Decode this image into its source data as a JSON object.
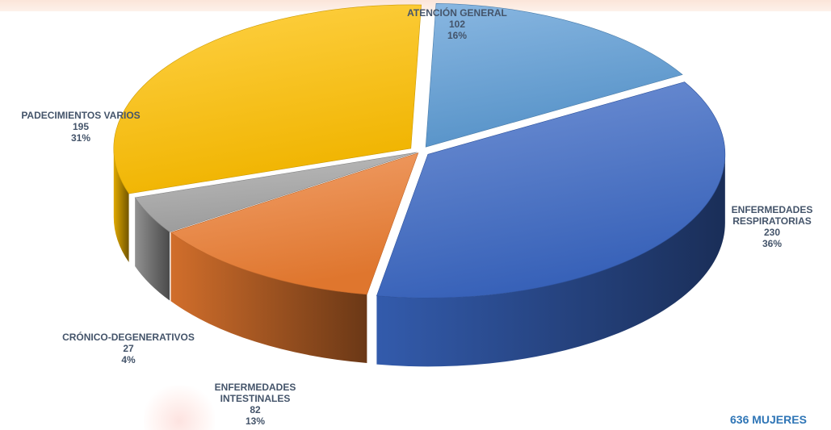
{
  "chart_data": {
    "type": "pie",
    "style": "3d-exploded",
    "total_label": "636 MUJERES",
    "slices": [
      {
        "name_lines": [
          "ATENCIÓN GENERAL"
        ],
        "value": 102,
        "value_label": "102",
        "percent": 16,
        "percent_label": "16%",
        "color": "#5b9bd5"
      },
      {
        "name_lines": [
          "ENFERMEDADES",
          "RESPIRATORIAS"
        ],
        "value": 230,
        "value_label": "230",
        "percent": 36,
        "percent_label": "36%",
        "color": "#3a67c4"
      },
      {
        "name_lines": [
          "ENFERMEDADES",
          "INTESTINALES"
        ],
        "value": 82,
        "value_label": "82",
        "percent": 13,
        "percent_label": "13%",
        "color": "#ed7d31"
      },
      {
        "name_lines": [
          "CRÓNICO-DEGENERATIVOS"
        ],
        "value": 27,
        "value_label": "27",
        "percent": 4,
        "percent_label": "4%",
        "color": "#a5a5a5"
      },
      {
        "name_lines": [
          "PADECIMIENTOS VARIOS"
        ],
        "value": 195,
        "value_label": "195",
        "percent": 31,
        "percent_label": "31%",
        "color": "#ffc000"
      }
    ]
  }
}
